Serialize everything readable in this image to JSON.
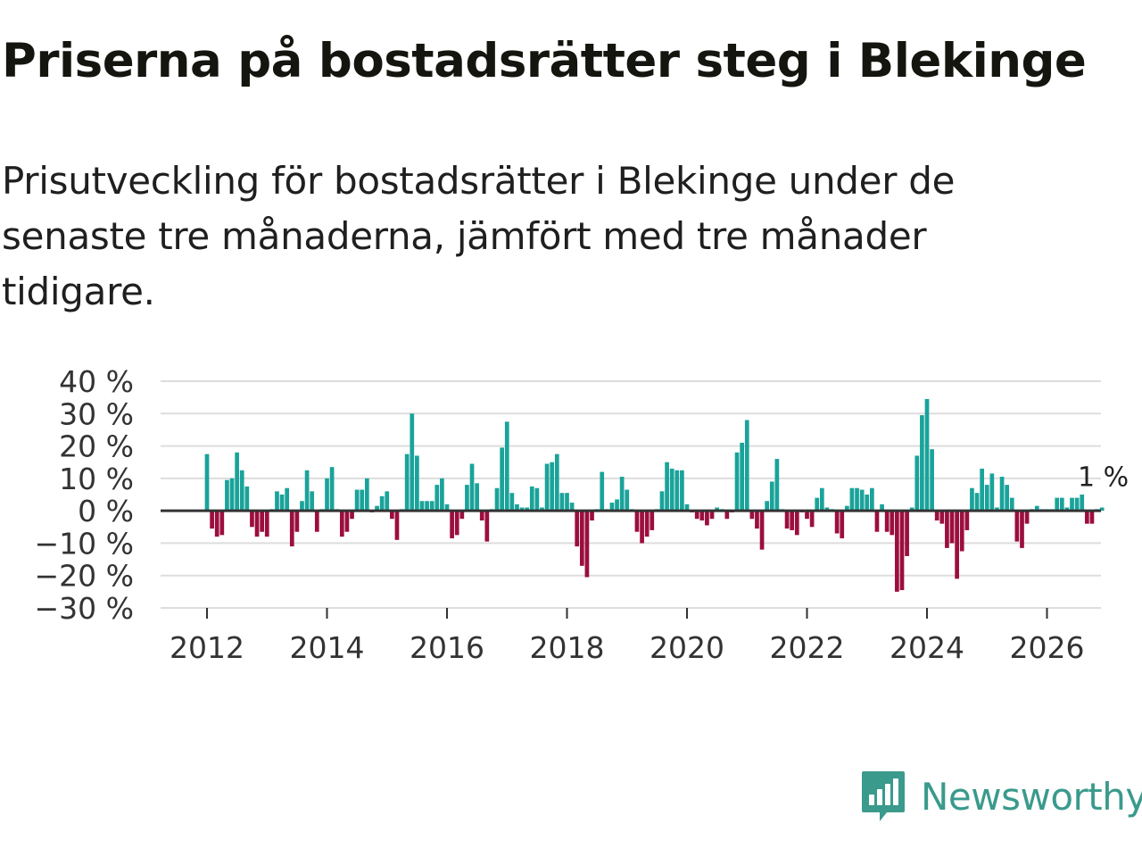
{
  "header": {
    "title": "Priserna på bostadsrätter steg i Blekinge",
    "subtitle": "Prisutveckling för bostadsrätter i Blekinge under de senaste tre månaderna, jämfört med tre månader tidigare."
  },
  "brand": {
    "name": "Newsworthy",
    "color": "#3a9a8c",
    "icon": "newsworthy-logo-icon"
  },
  "colors": {
    "positive": "#1aa39a",
    "negative": "#9b0e3e",
    "grid": "#dddddd",
    "zero_line": "#333333"
  },
  "chart_data": {
    "type": "bar",
    "title": "Priserna på bostadsrätter steg i Blekinge",
    "xlabel": "",
    "ylabel": "",
    "ylim": [
      -30,
      40
    ],
    "yticks": [
      40,
      30,
      20,
      10,
      0,
      -10,
      -20,
      -30
    ],
    "ytick_labels": [
      "40 %",
      "30 %",
      "20 %",
      "10 %",
      "0 %",
      "−10 %",
      "−20 %",
      "−30 %"
    ],
    "xticks": [
      2012,
      2014,
      2016,
      2018,
      2020,
      2022,
      2024,
      2026
    ],
    "xtick_labels": [
      "2012",
      "2014",
      "2016",
      "2018",
      "2020",
      "2022",
      "2024",
      "2026"
    ],
    "start": {
      "year": 2012,
      "month": 1
    },
    "unit": "month",
    "last_label": "1 %",
    "values": [
      17.5,
      -5.5,
      -8,
      -7.5,
      9.5,
      10,
      18,
      12.5,
      7.5,
      -5,
      -8,
      -6.5,
      -8,
      0.5,
      6,
      5,
      7,
      -11,
      -6.5,
      3,
      12.5,
      6,
      -6.5,
      0.5,
      10,
      13.5,
      0.5,
      -8,
      -6.5,
      -2.5,
      6.5,
      6.5,
      10,
      -0.5,
      1.5,
      4.5,
      6,
      -2.5,
      -9,
      0.5,
      17.5,
      30,
      17,
      3,
      3,
      3,
      8,
      10,
      2,
      -8.5,
      -7.5,
      -2.5,
      8,
      14.5,
      8.5,
      -3,
      -9.5,
      0.5,
      7,
      19.5,
      27.5,
      5.5,
      2,
      1,
      1,
      7.5,
      7,
      1,
      14.5,
      15,
      17.5,
      5.5,
      5.5,
      2.5,
      -11,
      -17,
      -20.5,
      -3,
      0.5,
      12,
      0.5,
      2.5,
      3.5,
      10.5,
      6.5,
      0.5,
      -6.5,
      -10,
      -8,
      -6,
      0.5,
      6,
      15,
      13,
      12.5,
      12.5,
      2,
      -0.5,
      -2.5,
      -3,
      -4.5,
      -2.5,
      1,
      0.5,
      -2.5,
      -0.5,
      18,
      21,
      28,
      -2.5,
      -5.5,
      -12,
      3,
      9,
      16,
      0.5,
      -5.5,
      -6,
      -7.5,
      -0.5,
      -2.5,
      -5,
      4,
      7,
      1,
      0.5,
      -7,
      -8.5,
      1.5,
      7,
      7,
      6.5,
      5,
      7,
      -6.5,
      2,
      -6.5,
      -7.5,
      -25,
      -24.5,
      -14,
      1,
      17,
      29.5,
      34.5,
      19,
      -3,
      -4,
      -11.5,
      -10,
      -21,
      -12.5,
      -6,
      7,
      5.5,
      13,
      8,
      11.5,
      1,
      10.5,
      8,
      4,
      -9.5,
      -11.5,
      -4,
      0.5,
      1.5,
      0.5,
      0.5,
      0.5,
      4,
      4,
      1,
      4,
      4,
      5,
      -4,
      -4,
      0.5,
      1
    ]
  }
}
